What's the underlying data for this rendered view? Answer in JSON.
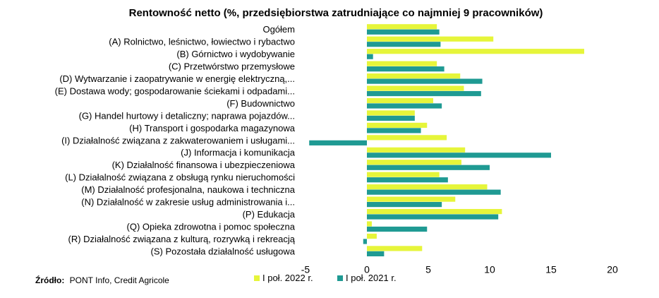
{
  "chart_data": {
    "type": "bar",
    "orientation": "horizontal",
    "title": "Rentowność netto (%, przedsiębiorstwa zatrudniające co najmniej 9 pracowników)",
    "categories": [
      "Ogółem",
      "(A) Rolnictwo, leśnictwo, łowiectwo i rybactwo",
      "(B) Górnictwo i wydobywanie",
      "(C) Przetwórstwo przemysłowe",
      "(D) Wytwarzanie i zaopatrywanie w energię elektryczną,...",
      "(E) Dostawa wody; gospodarowanie ściekami i odpadami...",
      "(F) Budownictwo",
      "(G) Handel hurtowy i detaliczny; naprawa pojazdów...",
      "(H) Transport i gospodarka magazynowa",
      "(I) Działalność związana z zakwaterowaniem i usługami...",
      "(J) Informacja i komunikacja",
      "(K) Działalność finansowa i ubezpieczeniowa",
      "(L) Działalność związana z obsługą rynku nieruchomości",
      "(M) Działalność profesjonalna, naukowa i techniczna",
      "(N) Działalność w zakresie usług administrowania i...",
      "(P) Edukacja",
      "(Q) Opieka zdrowotna i pomoc społeczna",
      "(R) Działalność związana z kulturą, rozrywką i rekreacją",
      "(S) Pozostała działalność usługowa"
    ],
    "series": [
      {
        "name": "I poł. 2022 r.",
        "color": "#e6f53a",
        "values": [
          5.7,
          10.3,
          17.7,
          5.7,
          7.6,
          7.9,
          5.4,
          3.9,
          4.9,
          6.5,
          8.0,
          7.7,
          5.9,
          9.8,
          7.2,
          11.0,
          0.4,
          0.8,
          4.5
        ]
      },
      {
        "name": "I poł. 2021 r.",
        "color": "#1f9a93",
        "values": [
          5.9,
          6.0,
          0.5,
          6.3,
          9.4,
          9.3,
          6.1,
          3.9,
          4.4,
          -4.7,
          15.0,
          10.0,
          6.6,
          10.9,
          6.1,
          10.7,
          4.9,
          -0.3,
          1.4
        ]
      }
    ],
    "xlim": [
      -5,
      20
    ],
    "xticks": [
      -5,
      0,
      5,
      10,
      15,
      20
    ],
    "legend_position": "bottom",
    "grid": false
  },
  "source": {
    "label": "Źródło:",
    "text": "PONT Info, Credit Agricole"
  }
}
